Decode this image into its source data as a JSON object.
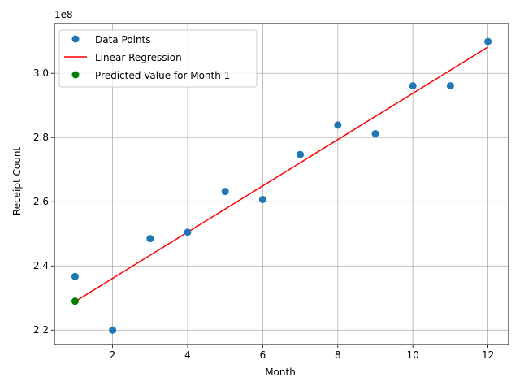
{
  "chart_data": {
    "type": "scatter",
    "xlabel": "Month",
    "ylabel": "Receipt Count",
    "y_offset_label": "1e8",
    "y_scale": 100000000,
    "xlim": [
      0.45,
      12.55
    ],
    "ylim": [
      2.155,
      3.155
    ],
    "xticks": [
      2,
      4,
      6,
      8,
      10,
      12
    ],
    "yticks": [
      2.2,
      2.4,
      2.6,
      2.8,
      3.0
    ],
    "ytick_labels": [
      "2.2",
      "2.4",
      "2.6",
      "2.8",
      "3.0"
    ],
    "grid": true,
    "legend_position": "upper-left",
    "series": [
      {
        "name": "Data Points",
        "kind": "scatter",
        "color": "#1f77b4",
        "x": [
          1,
          2,
          3,
          4,
          5,
          6,
          7,
          8,
          9,
          10,
          11,
          12
        ],
        "y": [
          2.367,
          2.2,
          2.485,
          2.505,
          2.632,
          2.607,
          2.747,
          2.839,
          2.812,
          2.961,
          2.961,
          3.099
        ]
      },
      {
        "name": "Linear Regression",
        "kind": "line",
        "color": "#ff0000",
        "x": [
          1,
          12
        ],
        "y": [
          2.289,
          3.082
        ]
      },
      {
        "name": "Predicted Value for Month 1",
        "kind": "scatter",
        "color": "#008000",
        "x": [
          1
        ],
        "y": [
          2.29
        ]
      }
    ]
  }
}
